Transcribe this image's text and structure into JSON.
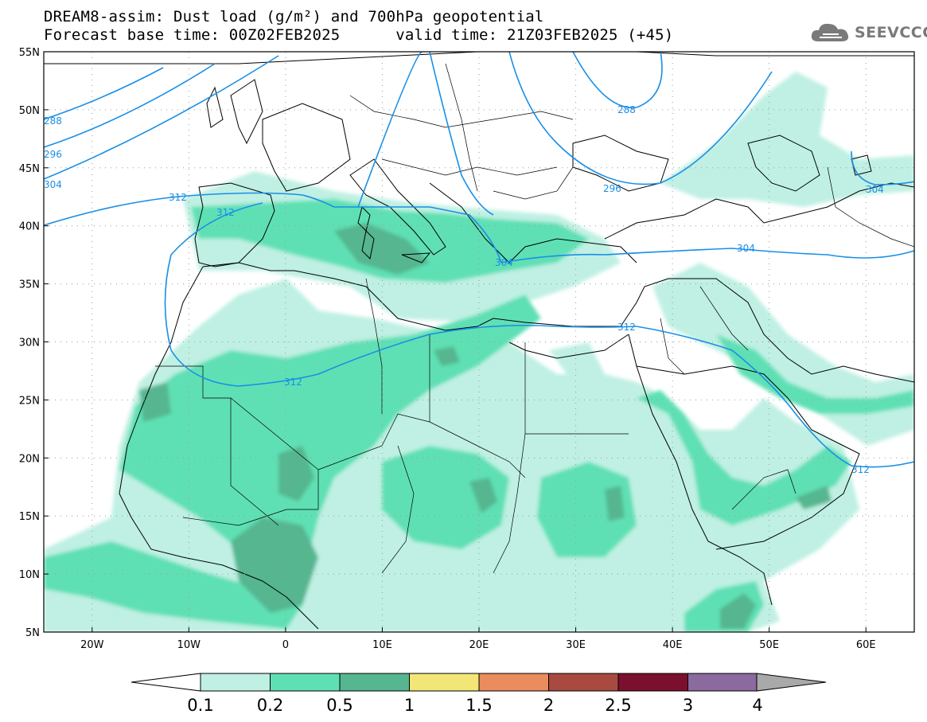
{
  "header": {
    "title_line1": "DREAM8-assim: Dust load (g/m²) and 700hPa geopotential",
    "title_line2": "Forecast base time: 00Z02FEB2025      valid time: 21Z03FEB2025 (+45)"
  },
  "logo": {
    "text": "SEEVCCC",
    "icon": "cloud-icon"
  },
  "map": {
    "lon_range": [
      -25,
      65
    ],
    "lat_range": [
      5,
      55
    ],
    "lat_labels": [
      "55N",
      "50N",
      "45N",
      "40N",
      "35N",
      "30N",
      "25N",
      "20N",
      "15N",
      "10N",
      "5N"
    ],
    "lon_labels": [
      "20W",
      "10W",
      "0",
      "10E",
      "20E",
      "30E",
      "40E",
      "50E",
      "60E"
    ],
    "contour_labels": [
      "288",
      "296",
      "304",
      "312",
      "312",
      "288",
      "296",
      "304",
      "304",
      "304",
      "312",
      "312",
      "312"
    ],
    "contour_color": "#1a8fe6"
  },
  "colorbar": {
    "labels": [
      "0.1",
      "0.2",
      "0.5",
      "1",
      "1.5",
      "2",
      "2.5",
      "3",
      "4"
    ],
    "colors": [
      "#bff0e3",
      "#5ee0b4",
      "#55b68f",
      "#f2e676",
      "#ea8c5e",
      "#a84a3f",
      "#7b0f2e",
      "#8b6aa0",
      "#a9a9a9"
    ],
    "under_color": "#ffffff",
    "over_color": "#a9a9a9"
  }
}
